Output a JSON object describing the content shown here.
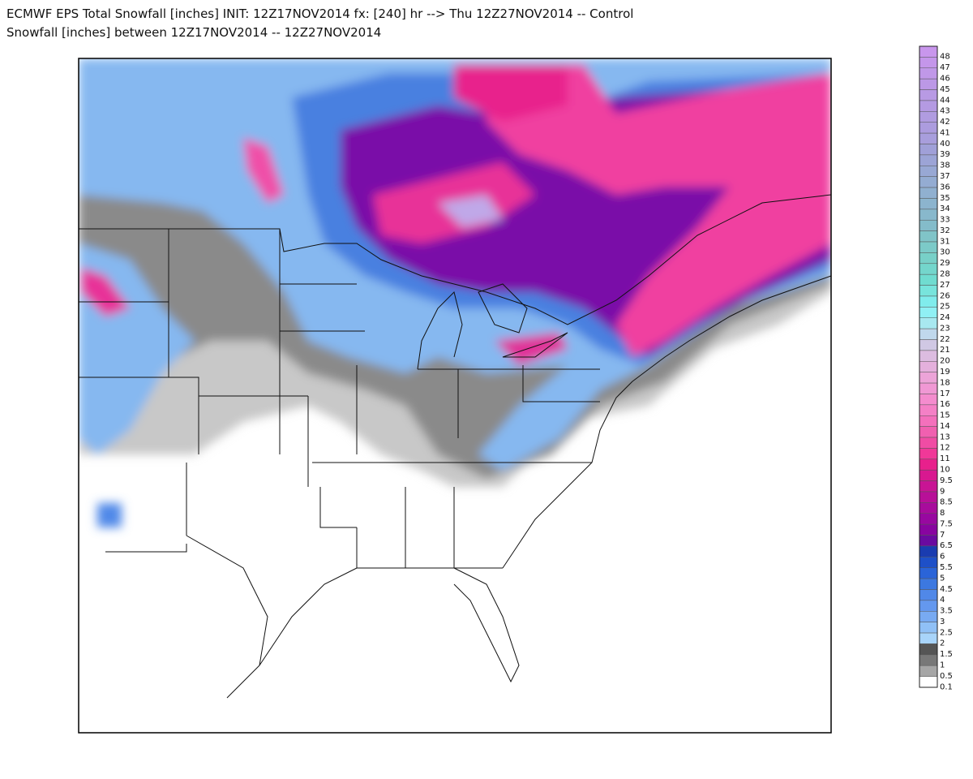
{
  "header": {
    "title": "ECMWF EPS Total Snowfall [inches] INIT: 12Z17NOV2014 fx: [240] hr --> Thu 12Z27NOV2014 -- Control",
    "subtitle": "Snowfall [inches] between 12Z17NOV2014 -- 12Z27NOV2014"
  },
  "legend": [
    {
      "label": "48",
      "color": "#c896ec"
    },
    {
      "label": "47",
      "color": "#c496ea"
    },
    {
      "label": "46",
      "color": "#c098e8"
    },
    {
      "label": "45",
      "color": "#bc98e6"
    },
    {
      "label": "44",
      "color": "#b89ae4"
    },
    {
      "label": "43",
      "color": "#b49ae2"
    },
    {
      "label": "42",
      "color": "#b09ce0"
    },
    {
      "label": "41",
      "color": "#ac9cde"
    },
    {
      "label": "40",
      "color": "#a89edc"
    },
    {
      "label": "39",
      "color": "#a0a0d8"
    },
    {
      "label": "38",
      "color": "#9ca4d6"
    },
    {
      "label": "37",
      "color": "#98a8d4"
    },
    {
      "label": "36",
      "color": "#94acd2"
    },
    {
      "label": "35",
      "color": "#90b0d0"
    },
    {
      "label": "34",
      "color": "#8cb4ce"
    },
    {
      "label": "33",
      "color": "#88b8cc"
    },
    {
      "label": "32",
      "color": "#84bcca"
    },
    {
      "label": "31",
      "color": "#80c4c8"
    },
    {
      "label": "30",
      "color": "#7ccac8"
    },
    {
      "label": "29",
      "color": "#78d0c8"
    },
    {
      "label": "28",
      "color": "#74d6cc"
    },
    {
      "label": "27",
      "color": "#70dcd0"
    },
    {
      "label": "26",
      "color": "#78e4dc"
    },
    {
      "label": "25",
      "color": "#80ecec"
    },
    {
      "label": "24",
      "color": "#90f0f4"
    },
    {
      "label": "23",
      "color": "#a8e8f0"
    },
    {
      "label": "22",
      "color": "#c0d8ec"
    },
    {
      "label": "21",
      "color": "#d0c8e4"
    },
    {
      "label": "20",
      "color": "#dcbce0"
    },
    {
      "label": "19",
      "color": "#e4b0dc"
    },
    {
      "label": "18",
      "color": "#eca4d8"
    },
    {
      "label": "17",
      "color": "#f098d4"
    },
    {
      "label": "16",
      "color": "#f48cce"
    },
    {
      "label": "15",
      "color": "#f480c6"
    },
    {
      "label": "14",
      "color": "#f470bc"
    },
    {
      "label": "13",
      "color": "#f060b0"
    },
    {
      "label": "12",
      "color": "#f04ca4"
    },
    {
      "label": "11",
      "color": "#f03898"
    },
    {
      "label": "10",
      "color": "#e8208c"
    },
    {
      "label": "9.5",
      "color": "#d81890"
    },
    {
      "label": "9",
      "color": "#c81494"
    },
    {
      "label": "8.5",
      "color": "#b81098"
    },
    {
      "label": "8",
      "color": "#a80c9c"
    },
    {
      "label": "7.5",
      "color": "#9808a0"
    },
    {
      "label": "7",
      "color": "#8804a0"
    },
    {
      "label": "6.5",
      "color": "#6a0aa0"
    },
    {
      "label": "6",
      "color": "#1a3cb0"
    },
    {
      "label": "5.5",
      "color": "#1e50c8"
    },
    {
      "label": "5",
      "color": "#2a64d8"
    },
    {
      "label": "4.5",
      "color": "#3c78e0"
    },
    {
      "label": "4",
      "color": "#5088e8"
    },
    {
      "label": "3.5",
      "color": "#6498ee"
    },
    {
      "label": "3",
      "color": "#78aaf2"
    },
    {
      "label": "2.5",
      "color": "#90c0f6"
    },
    {
      "label": "2",
      "color": "#a8d4fa"
    },
    {
      "label": "1.5",
      "color": "#555555"
    },
    {
      "label": "1",
      "color": "#787878"
    },
    {
      "label": "0.5",
      "color": "#a6a6a6"
    },
    {
      "label": "0.1",
      "color": "#ffffff"
    }
  ]
}
